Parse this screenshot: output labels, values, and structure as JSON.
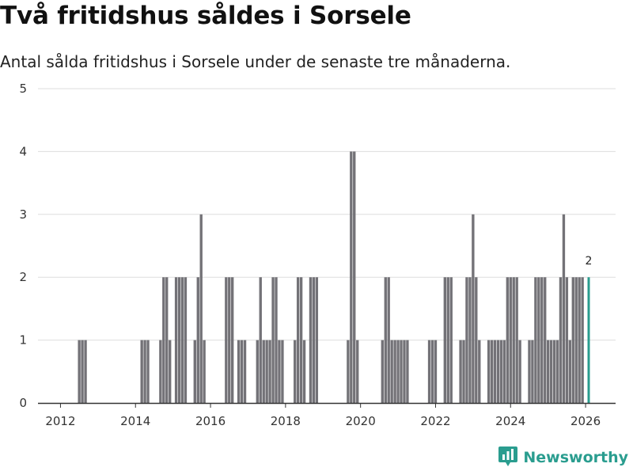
{
  "chart_data": {
    "type": "bar",
    "title": "Två fritidshus såldes i Sorsele",
    "subtitle": "Antal sålda fritidshus i Sorsele under de senaste tre månaderna.",
    "xlabel": "",
    "ylabel": "",
    "ylim": [
      0,
      5
    ],
    "xlim": [
      2011.4,
      2026.8
    ],
    "y_ticks": [
      0,
      1,
      2,
      3,
      4,
      5
    ],
    "x_ticks": [
      2012,
      2014,
      2016,
      2018,
      2020,
      2022,
      2024,
      2026
    ],
    "grid": true,
    "bar_color": "#737277",
    "highlight_color": "#2a9d8f",
    "series": [
      {
        "name": "Sålda fritidshus",
        "x": [
          2012.5,
          2012.583,
          2012.667,
          2014.167,
          2014.25,
          2014.333,
          2014.667,
          2014.75,
          2014.833,
          2014.917,
          2015.083,
          2015.167,
          2015.25,
          2015.333,
          2015.583,
          2015.667,
          2015.75,
          2015.833,
          2016.417,
          2016.5,
          2016.583,
          2016.75,
          2016.833,
          2016.917,
          2017.25,
          2017.333,
          2017.417,
          2017.5,
          2017.583,
          2017.667,
          2017.75,
          2017.833,
          2017.917,
          2018.25,
          2018.333,
          2018.417,
          2018.5,
          2018.667,
          2018.75,
          2018.833,
          2019.667,
          2019.75,
          2019.833,
          2019.917,
          2020.583,
          2020.667,
          2020.75,
          2020.833,
          2020.917,
          2021.0,
          2021.083,
          2021.167,
          2021.25,
          2021.833,
          2021.917,
          2022.0,
          2022.25,
          2022.333,
          2022.417,
          2022.667,
          2022.75,
          2022.833,
          2022.917,
          2023.0,
          2023.083,
          2023.167,
          2023.417,
          2023.5,
          2023.583,
          2023.667,
          2023.75,
          2023.833,
          2023.917,
          2024.0,
          2024.083,
          2024.167,
          2024.25,
          2024.5,
          2024.583,
          2024.667,
          2024.75,
          2024.833,
          2024.917,
          2025.0,
          2025.083,
          2025.167,
          2025.25,
          2025.333,
          2025.417,
          2025.5,
          2025.583,
          2025.667,
          2025.75,
          2025.833,
          2025.917,
          2026.083
        ],
        "values": [
          1,
          1,
          1,
          1,
          1,
          1,
          1,
          2,
          2,
          1,
          2,
          2,
          2,
          2,
          1,
          2,
          3,
          1,
          2,
          2,
          2,
          1,
          1,
          1,
          1,
          2,
          1,
          1,
          1,
          2,
          2,
          1,
          1,
          1,
          2,
          2,
          1,
          2,
          2,
          2,
          1,
          4,
          4,
          1,
          1,
          2,
          2,
          1,
          1,
          1,
          1,
          1,
          1,
          1,
          1,
          1,
          2,
          2,
          2,
          1,
          1,
          2,
          2,
          3,
          2,
          1,
          1,
          1,
          1,
          1,
          1,
          1,
          2,
          2,
          2,
          2,
          1,
          1,
          1,
          2,
          2,
          2,
          2,
          1,
          1,
          1,
          1,
          2,
          3,
          2,
          1,
          2,
          2,
          2,
          2,
          2
        ]
      }
    ],
    "annotations": [
      {
        "x": 2026.083,
        "value": 2,
        "label": "2"
      }
    ]
  },
  "brand": {
    "name": "Newsworthy",
    "icon": "bar-chart-badge-icon",
    "color": "#2a9d8f"
  }
}
